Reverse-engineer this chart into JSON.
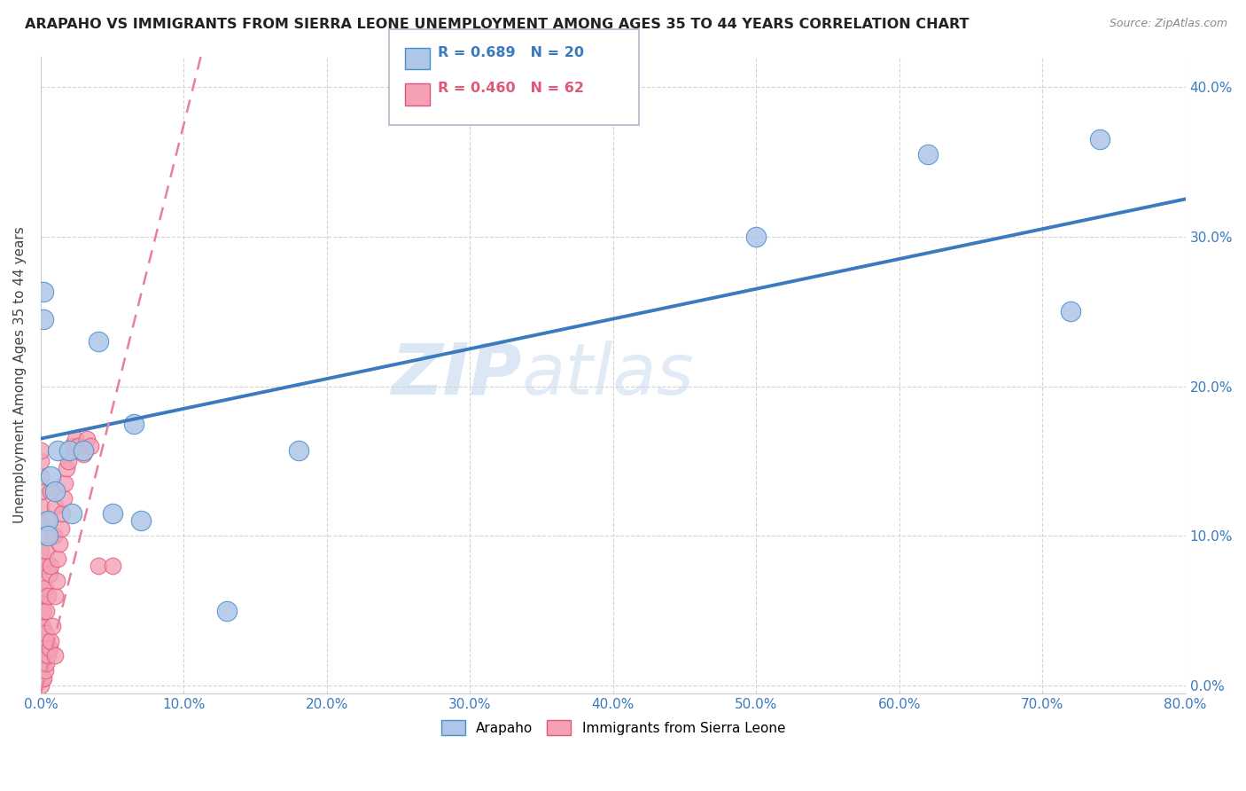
{
  "title": "ARAPAHO VS IMMIGRANTS FROM SIERRA LEONE UNEMPLOYMENT AMONG AGES 35 TO 44 YEARS CORRELATION CHART",
  "source": "Source: ZipAtlas.com",
  "ylabel": "Unemployment Among Ages 35 to 44 years",
  "xlim": [
    0,
    0.8
  ],
  "ylim": [
    -0.005,
    0.42
  ],
  "watermark_zip": "ZIP",
  "watermark_atlas": "atlas",
  "legend_r1": "R = 0.689",
  "legend_n1": "N = 20",
  "legend_r2": "R = 0.460",
  "legend_n2": "N = 62",
  "arapaho_color": "#aec6e8",
  "sierra_leone_color": "#f4a0b5",
  "arapaho_edge_color": "#4a90c8",
  "sierra_leone_edge_color": "#e05878",
  "arapaho_line_color": "#3a7abf",
  "sierra_leone_line_color": "#e88098",
  "grid_color": "#d0d0d0",
  "background_color": "#ffffff",
  "arapaho_x": [
    0.002,
    0.002,
    0.005,
    0.005,
    0.007,
    0.01,
    0.012,
    0.02,
    0.022,
    0.03,
    0.04,
    0.05,
    0.065,
    0.07,
    0.13,
    0.18,
    0.5,
    0.62,
    0.72,
    0.74
  ],
  "arapaho_y": [
    0.263,
    0.245,
    0.11,
    0.1,
    0.14,
    0.13,
    0.157,
    0.157,
    0.115,
    0.157,
    0.23,
    0.115,
    0.175,
    0.11,
    0.05,
    0.157,
    0.3,
    0.355,
    0.25,
    0.365
  ],
  "sierra_leone_x": [
    0.0,
    0.0,
    0.0,
    0.0,
    0.0,
    0.0,
    0.0,
    0.0,
    0.0,
    0.0,
    0.0,
    0.0,
    0.0,
    0.0,
    0.0,
    0.0,
    0.0,
    0.001,
    0.001,
    0.001,
    0.001,
    0.002,
    0.002,
    0.002,
    0.002,
    0.003,
    0.003,
    0.003,
    0.004,
    0.004,
    0.004,
    0.005,
    0.005,
    0.005,
    0.006,
    0.006,
    0.007,
    0.007,
    0.007,
    0.008,
    0.009,
    0.01,
    0.01,
    0.01,
    0.011,
    0.012,
    0.013,
    0.014,
    0.015,
    0.016,
    0.017,
    0.018,
    0.019,
    0.02,
    0.022,
    0.024,
    0.026,
    0.03,
    0.032,
    0.035,
    0.04,
    0.05
  ],
  "sierra_leone_y": [
    0.0,
    0.01,
    0.02,
    0.03,
    0.04,
    0.05,
    0.06,
    0.07,
    0.08,
    0.09,
    0.1,
    0.11,
    0.12,
    0.13,
    0.14,
    0.15,
    0.157,
    0.005,
    0.02,
    0.04,
    0.06,
    0.005,
    0.025,
    0.05,
    0.08,
    0.01,
    0.035,
    0.065,
    0.015,
    0.05,
    0.09,
    0.02,
    0.06,
    0.11,
    0.025,
    0.075,
    0.03,
    0.08,
    0.13,
    0.04,
    0.1,
    0.02,
    0.06,
    0.12,
    0.07,
    0.085,
    0.095,
    0.105,
    0.115,
    0.125,
    0.135,
    0.145,
    0.15,
    0.157,
    0.16,
    0.165,
    0.16,
    0.155,
    0.165,
    0.16,
    0.08,
    0.08
  ]
}
